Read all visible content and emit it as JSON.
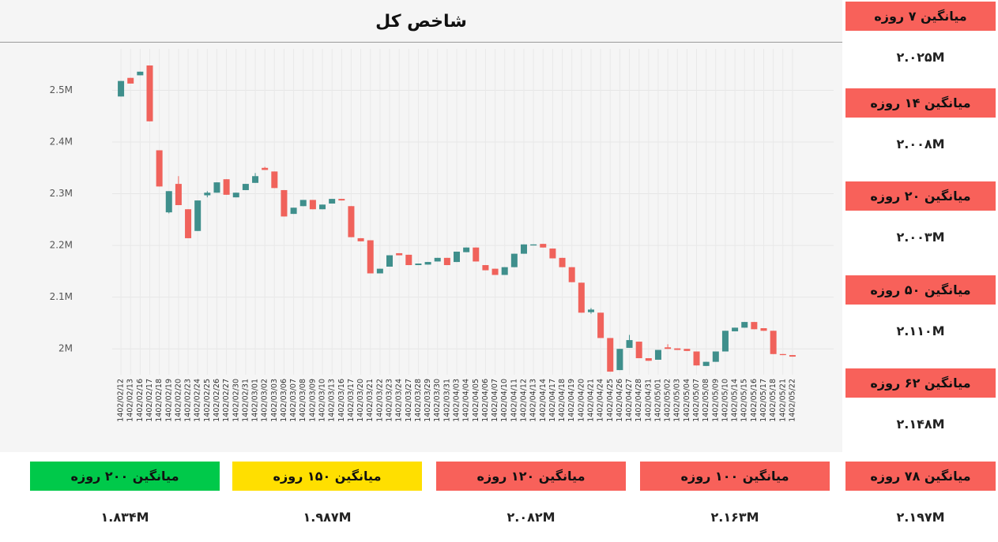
{
  "chart_data": {
    "type": "candlestick",
    "title": "شاخص کل",
    "categories": [
      "1402/02/12",
      "1402/02/13",
      "1402/02/16",
      "1402/02/17",
      "1402/02/18",
      "1402/02/19",
      "1402/02/20",
      "1402/02/23",
      "1402/02/24",
      "1402/02/25",
      "1402/02/26",
      "1402/02/27",
      "1402/02/30",
      "1402/02/31",
      "1402/03/01",
      "1402/03/02",
      "1402/03/03",
      "1402/03/06",
      "1402/03/07",
      "1402/03/08",
      "1402/03/09",
      "1402/03/10",
      "1402/03/13",
      "1402/03/16",
      "1402/03/17",
      "1402/03/20",
      "1402/03/21",
      "1402/03/22",
      "1402/03/23",
      "1402/03/24",
      "1402/03/27",
      "1402/03/28",
      "1402/03/29",
      "1402/03/30",
      "1402/03/31",
      "1402/04/03",
      "1402/04/04",
      "1402/04/05",
      "1402/04/06",
      "1402/04/07",
      "1402/04/10",
      "1402/04/11",
      "1402/04/12",
      "1402/04/13",
      "1402/04/14",
      "1402/04/17",
      "1402/04/18",
      "1402/04/19",
      "1402/04/20",
      "1402/04/21",
      "1402/04/24",
      "1402/04/25",
      "1402/04/26",
      "1402/04/27",
      "1402/04/28",
      "1402/04/31",
      "1402/05/01",
      "1402/05/02",
      "1402/05/03",
      "1402/05/04",
      "1402/05/07",
      "1402/05/08",
      "1402/05/09",
      "1402/05/10",
      "1402/05/14",
      "1402/05/15",
      "1402/05/16",
      "1402/05/17",
      "1402/05/18",
      "1402/05/21",
      "1402/05/22"
    ],
    "open": [
      2488000,
      2524000,
      2529000,
      2548000,
      2384000,
      2264000,
      2319000,
      2270000,
      2228000,
      2297000,
      2302000,
      2328000,
      2293000,
      2307000,
      2321000,
      2350000,
      2343000,
      2307000,
      2261000,
      2276000,
      2288000,
      2270000,
      2281000,
      2290000,
      2276000,
      2214000,
      2210000,
      2146000,
      2159000,
      2185000,
      2182000,
      2162000,
      2163000,
      2169000,
      2176000,
      2168000,
      2187000,
      2196000,
      2162000,
      2155000,
      2143000,
      2158000,
      2184000,
      2200000,
      2203000,
      2194000,
      2176000,
      2158000,
      2128000,
      2071000,
      2070000,
      2021000,
      1959000,
      2002000,
      2014000,
      1982000,
      1979000,
      2003000,
      2001000,
      2000000,
      1995000,
      1967000,
      1975000,
      1995000,
      2034000,
      2041000,
      2052000,
      2040000,
      2035000,
      1990000,
      1988000
    ],
    "close": [
      2518000,
      2513000,
      2536000,
      2440000,
      2314000,
      2305000,
      2278000,
      2214000,
      2287000,
      2302000,
      2322000,
      2298000,
      2302000,
      2319000,
      2334000,
      2346000,
      2311000,
      2256000,
      2273000,
      2288000,
      2270000,
      2279000,
      2290000,
      2287000,
      2216000,
      2208000,
      2146000,
      2155000,
      2181000,
      2181000,
      2162000,
      2165000,
      2168000,
      2176000,
      2162000,
      2188000,
      2196000,
      2169000,
      2152000,
      2143000,
      2158000,
      2184000,
      2202000,
      2202000,
      2196000,
      2175000,
      2158000,
      2129000,
      2070000,
      2076000,
      2021000,
      1956000,
      2000000,
      2017000,
      1982000,
      1977000,
      1998000,
      2000000,
      1998000,
      1996000,
      1968000,
      1975000,
      1995000,
      2035000,
      2041000,
      2052000,
      2038000,
      2035000,
      1990000,
      1988000,
      1985000
    ],
    "high": [
      2518000,
      2524000,
      2536000,
      2548000,
      2384000,
      2305000,
      2334000,
      2270000,
      2287000,
      2305000,
      2322000,
      2328000,
      2302000,
      2319000,
      2340000,
      2352000,
      2343000,
      2307000,
      2273000,
      2288000,
      2288000,
      2279000,
      2290000,
      2290000,
      2276000,
      2214000,
      2210000,
      2155000,
      2181000,
      2185000,
      2182000,
      2165000,
      2168000,
      2176000,
      2176000,
      2188000,
      2196000,
      2196000,
      2162000,
      2155000,
      2158000,
      2184000,
      2202000,
      2202000,
      2203000,
      2194000,
      2176000,
      2158000,
      2128000,
      2079000,
      2070000,
      2021000,
      2000000,
      2027000,
      2014000,
      1982000,
      1998000,
      2009000,
      2001000,
      2000000,
      1995000,
      1975000,
      1995000,
      2035000,
      2041000,
      2052000,
      2052000,
      2040000,
      2035000,
      1990000,
      1988000
    ],
    "low": [
      2488000,
      2513000,
      2529000,
      2440000,
      2314000,
      2262000,
      2278000,
      2214000,
      2228000,
      2293000,
      2302000,
      2298000,
      2293000,
      2307000,
      2321000,
      2346000,
      2311000,
      2256000,
      2261000,
      2276000,
      2270000,
      2270000,
      2281000,
      2287000,
      2216000,
      2208000,
      2146000,
      2146000,
      2159000,
      2181000,
      2162000,
      2162000,
      2163000,
      2169000,
      2162000,
      2168000,
      2187000,
      2169000,
      2152000,
      2143000,
      2143000,
      2158000,
      2184000,
      2200000,
      2196000,
      2175000,
      2158000,
      2129000,
      2070000,
      2068000,
      2021000,
      1956000,
      1959000,
      2002000,
      1982000,
      1977000,
      1979000,
      2000000,
      1998000,
      1996000,
      1968000,
      1967000,
      1975000,
      1995000,
      2034000,
      2041000,
      2038000,
      2035000,
      1990000,
      1988000,
      1985000
    ],
    "up_color": "#3f8f8c",
    "down_color": "#f0625b",
    "ylim": [
      1950000,
      2580000
    ],
    "yticks": [
      {
        "value": 2000000,
        "label": "2M"
      },
      {
        "value": 2100000,
        "label": "2.1M"
      },
      {
        "value": 2200000,
        "label": "2.2M"
      },
      {
        "value": 2300000,
        "label": "2.3M"
      },
      {
        "value": 2400000,
        "label": "2.4M"
      },
      {
        "value": 2500000,
        "label": "2.5M"
      }
    ],
    "grid": true
  },
  "tiles": [
    {
      "label": "میانگین ۷ روزه",
      "value": "۲.۰۲۵M",
      "color": "#f8615a"
    },
    {
      "label": "میانگین ۱۴ روزه",
      "value": "۲.۰۰۸M",
      "color": "#f8615a"
    },
    {
      "label": "میانگین ۲۰ روزه",
      "value": "۲.۰۰۳M",
      "color": "#f8615a"
    },
    {
      "label": "میانگین ۵۰ روزه",
      "value": "۲.۱۱۰M",
      "color": "#f8615a"
    },
    {
      "label": "میانگین ۶۲ روزه",
      "value": "۲.۱۴۸M",
      "color": "#f8615a"
    },
    {
      "label": "میانگین ۷۸ روزه",
      "value": "۲.۱۹۷M",
      "color": "#f8615a"
    },
    {
      "label": "میانگین ۱۰۰ روزه",
      "value": "۲.۱۶۳M",
      "color": "#f8615a"
    },
    {
      "label": "میانگین ۱۲۰ روزه",
      "value": "۲.۰۸۲M",
      "color": "#f8615a"
    },
    {
      "label": "میانگین ۱۵۰ روزه",
      "value": "۱.۹۸۷M",
      "color": "#ffdf00"
    },
    {
      "label": "میانگین ۲۰۰ روزه",
      "value": "۱.۸۳۴M",
      "color": "#00c94a"
    }
  ]
}
